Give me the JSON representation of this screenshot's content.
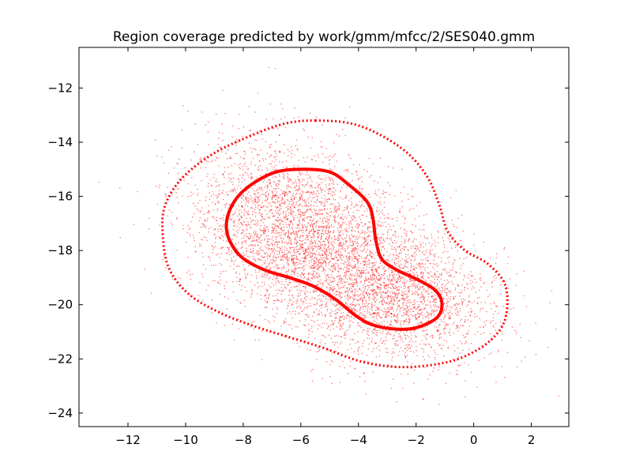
{
  "chart_data": {
    "type": "scatter",
    "title": "Region coverage predicted by work/gmm/mfcc/2/SES040.gmm",
    "xlabel": "",
    "ylabel": "",
    "xlim": [
      -13.7,
      3.3
    ],
    "ylim": [
      -24.5,
      -10.5
    ],
    "xticks": [
      -12,
      -10,
      -8,
      -6,
      -4,
      -2,
      0,
      2
    ],
    "yticks": [
      -24,
      -22,
      -20,
      -18,
      -16,
      -14,
      -12
    ],
    "xtick_labels": [
      "−12",
      "−10",
      "−8",
      "−6",
      "−4",
      "−2",
      "0",
      "2"
    ],
    "ytick_labels": [
      "−24",
      "−22",
      "−20",
      "−18",
      "−16",
      "−14",
      "−12"
    ],
    "grid": false,
    "legend": "none",
    "colors": {
      "points": "#ff0000",
      "contours": "#ff0000",
      "axes": "#000000",
      "background": "#ffffff"
    },
    "points_estimate": {
      "approx_count": 6000,
      "components": [
        {
          "weight": 0.55,
          "mean": [
            -6.2,
            -17.2
          ],
          "std": [
            1.85,
            1.55
          ],
          "corr": -0.25
        },
        {
          "weight": 0.45,
          "mean": [
            -2.9,
            -19.6
          ],
          "std": [
            1.8,
            1.3
          ],
          "corr": -0.2
        }
      ]
    },
    "contours": [
      {
        "style": "solid",
        "points": [
          [
            -6.0,
            -15.0
          ],
          [
            -5.0,
            -15.1
          ],
          [
            -4.3,
            -15.6
          ],
          [
            -3.7,
            -16.2
          ],
          [
            -3.5,
            -16.8
          ],
          [
            -3.4,
            -17.6
          ],
          [
            -3.2,
            -18.3
          ],
          [
            -2.7,
            -18.7
          ],
          [
            -1.9,
            -19.1
          ],
          [
            -1.3,
            -19.5
          ],
          [
            -1.1,
            -20.0
          ],
          [
            -1.3,
            -20.5
          ],
          [
            -2.0,
            -20.85
          ],
          [
            -2.7,
            -20.9
          ],
          [
            -3.5,
            -20.75
          ],
          [
            -4.1,
            -20.4
          ],
          [
            -4.8,
            -19.8
          ],
          [
            -5.6,
            -19.3
          ],
          [
            -6.4,
            -19.0
          ],
          [
            -7.3,
            -18.7
          ],
          [
            -8.1,
            -18.2
          ],
          [
            -8.55,
            -17.4
          ],
          [
            -8.5,
            -16.6
          ],
          [
            -8.0,
            -15.8
          ],
          [
            -7.0,
            -15.15
          ],
          [
            -6.0,
            -15.0
          ]
        ]
      },
      {
        "style": "dotted",
        "points": [
          [
            -5.5,
            -13.2
          ],
          [
            -4.3,
            -13.3
          ],
          [
            -3.3,
            -13.7
          ],
          [
            -2.3,
            -14.4
          ],
          [
            -1.6,
            -15.3
          ],
          [
            -1.2,
            -16.3
          ],
          [
            -0.9,
            -17.3
          ],
          [
            -0.3,
            -18.0
          ],
          [
            0.5,
            -18.5
          ],
          [
            1.1,
            -19.3
          ],
          [
            1.1,
            -20.5
          ],
          [
            0.6,
            -21.3
          ],
          [
            -0.3,
            -21.9
          ],
          [
            -1.3,
            -22.2
          ],
          [
            -2.6,
            -22.3
          ],
          [
            -3.9,
            -22.1
          ],
          [
            -5.2,
            -21.6
          ],
          [
            -6.4,
            -21.2
          ],
          [
            -7.6,
            -20.8
          ],
          [
            -8.8,
            -20.3
          ],
          [
            -9.9,
            -19.6
          ],
          [
            -10.6,
            -18.6
          ],
          [
            -10.8,
            -17.3
          ],
          [
            -10.7,
            -16.3
          ],
          [
            -10.1,
            -15.3
          ],
          [
            -9.0,
            -14.4
          ],
          [
            -7.6,
            -13.7
          ],
          [
            -6.5,
            -13.3
          ],
          [
            -5.5,
            -13.2
          ]
        ]
      }
    ]
  }
}
